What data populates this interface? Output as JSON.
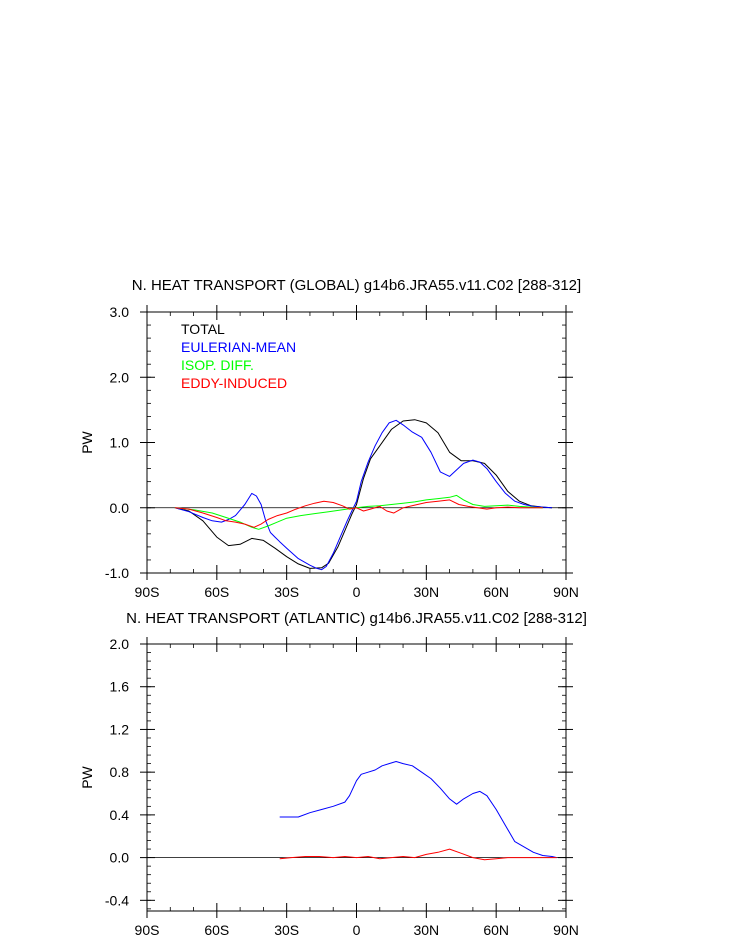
{
  "chart_data": [
    {
      "type": "line",
      "title": "N. HEAT TRANSPORT (GLOBAL) g14b6.JRA55.v11.C02 [288-312]",
      "xlabel": "",
      "ylabel": "PW",
      "xlim": [
        -90,
        90
      ],
      "ylim": [
        -1.0,
        3.0
      ],
      "xticks": [
        -90,
        -60,
        -30,
        0,
        30,
        60,
        90
      ],
      "xtick_labels": [
        "90S",
        "60S",
        "30S",
        "0",
        "30N",
        "60N",
        "90N"
      ],
      "yticks": [
        -1.0,
        0.0,
        1.0,
        2.0,
        3.0
      ],
      "ytick_labels": [
        "-1.0",
        "0.0",
        "1.0",
        "2.0",
        "3.0"
      ],
      "legend_position": "top-left",
      "series": [
        {
          "name": "TOTAL",
          "color": "#000000",
          "x": [
            -78,
            -72,
            -66,
            -60,
            -55,
            -50,
            -45,
            -40,
            -35,
            -30,
            -25,
            -20,
            -15,
            -12,
            -8,
            -5,
            -2,
            0,
            3,
            6,
            10,
            15,
            20,
            25,
            30,
            35,
            40,
            45,
            50,
            55,
            60,
            65,
            70,
            75,
            80,
            84
          ],
          "y": [
            0,
            -0.05,
            -0.2,
            -0.45,
            -0.58,
            -0.56,
            -0.47,
            -0.5,
            -0.62,
            -0.75,
            -0.86,
            -0.93,
            -0.92,
            -0.85,
            -0.6,
            -0.35,
            -0.1,
            0.05,
            0.45,
            0.75,
            0.95,
            1.2,
            1.33,
            1.35,
            1.3,
            1.15,
            0.85,
            0.72,
            0.72,
            0.68,
            0.5,
            0.25,
            0.1,
            0.03,
            0.01,
            0
          ]
        },
        {
          "name": "EULERIAN-MEAN",
          "color": "#0000ff",
          "x": [
            -78,
            -72,
            -66,
            -62,
            -58,
            -55,
            -52,
            -48,
            -45,
            -43,
            -41,
            -39,
            -37,
            -35,
            -33,
            -30,
            -25,
            -20,
            -17,
            -15,
            -13,
            -10,
            -7,
            -4,
            -2,
            0,
            2,
            5,
            8,
            11,
            14,
            17,
            20,
            24,
            28,
            32,
            36,
            40,
            43,
            46,
            50,
            53,
            56,
            60,
            64,
            68,
            72,
            76,
            80,
            84
          ],
          "y": [
            0,
            -0.06,
            -0.15,
            -0.2,
            -0.22,
            -0.18,
            -0.12,
            0.05,
            0.22,
            0.18,
            0.05,
            -0.2,
            -0.38,
            -0.45,
            -0.52,
            -0.62,
            -0.78,
            -0.88,
            -0.93,
            -0.95,
            -0.9,
            -0.7,
            -0.45,
            -0.2,
            -0.05,
            0.1,
            0.4,
            0.7,
            0.95,
            1.15,
            1.3,
            1.34,
            1.27,
            1.16,
            1.08,
            0.85,
            0.55,
            0.48,
            0.58,
            0.68,
            0.73,
            0.7,
            0.6,
            0.4,
            0.22,
            0.1,
            0.05,
            0.02,
            0.01,
            0
          ]
        },
        {
          "name": "ISOP. DIFF.",
          "color": "#00ff00",
          "x": [
            -78,
            -70,
            -62,
            -56,
            -50,
            -45,
            -42,
            -38,
            -34,
            -30,
            -24,
            -18,
            -12,
            -6,
            0,
            5,
            10,
            15,
            20,
            25,
            30,
            35,
            40,
            43,
            46,
            50,
            55,
            60,
            65,
            70,
            75,
            80
          ],
          "y": [
            0,
            -0.03,
            -0.08,
            -0.15,
            -0.22,
            -0.3,
            -0.33,
            -0.28,
            -0.22,
            -0.16,
            -0.12,
            -0.09,
            -0.06,
            -0.03,
            0.0,
            0.02,
            0.03,
            0.05,
            0.07,
            0.09,
            0.12,
            0.14,
            0.16,
            0.19,
            0.12,
            0.05,
            0.02,
            0.03,
            0.04,
            0.02,
            0.01,
            0
          ]
        },
        {
          "name": "EDDY-INDUCED",
          "color": "#ff0000",
          "x": [
            -78,
            -72,
            -66,
            -60,
            -56,
            -52,
            -48,
            -44,
            -41,
            -38,
            -34,
            -30,
            -26,
            -22,
            -18,
            -14,
            -10,
            -6,
            -3,
            0,
            3,
            6,
            10,
            13,
            16,
            20,
            25,
            30,
            35,
            40,
            44,
            48,
            52,
            56,
            60,
            65,
            70,
            75,
            80
          ],
          "y": [
            0,
            -0.02,
            -0.08,
            -0.15,
            -0.2,
            -0.22,
            -0.25,
            -0.3,
            -0.25,
            -0.18,
            -0.12,
            -0.08,
            -0.02,
            0.03,
            0.07,
            0.1,
            0.08,
            0.03,
            -0.02,
            0.0,
            -0.05,
            -0.02,
            0.02,
            -0.05,
            -0.08,
            0.0,
            0.04,
            0.08,
            0.1,
            0.12,
            0.05,
            0.02,
            0.0,
            -0.02,
            0.0,
            0.01,
            0.0,
            0.0,
            0
          ]
        }
      ]
    },
    {
      "type": "line",
      "title": "N. HEAT TRANSPORT (ATLANTIC) g14b6.JRA55.v11.C02 [288-312]",
      "xlabel": "",
      "ylabel": "PW",
      "xlim": [
        -90,
        90
      ],
      "ylim": [
        -0.5,
        2.0
      ],
      "xticks": [
        -90,
        -60,
        -30,
        0,
        30,
        60,
        90
      ],
      "xtick_labels": [
        "90S",
        "60S",
        "30S",
        "0",
        "30N",
        "60N",
        "90N"
      ],
      "yticks": [
        -0.4,
        0.0,
        0.4,
        0.8,
        1.2,
        1.6,
        2.0
      ],
      "ytick_labels": [
        "-0.4",
        "0.0",
        "0.4",
        "0.8",
        "1.2",
        "1.6",
        "2.0"
      ],
      "series": [
        {
          "name": "EULERIAN-MEAN",
          "color": "#0000ff",
          "x": [
            -33,
            -30,
            -25,
            -20,
            -15,
            -10,
            -5,
            -3,
            0,
            2,
            5,
            8,
            11,
            14,
            17,
            20,
            24,
            28,
            32,
            36,
            40,
            43,
            46,
            50,
            53,
            56,
            60,
            64,
            68,
            72,
            76,
            80,
            84,
            86
          ],
          "y": [
            0.38,
            0.38,
            0.38,
            0.42,
            0.45,
            0.48,
            0.52,
            0.58,
            0.72,
            0.78,
            0.8,
            0.82,
            0.86,
            0.88,
            0.9,
            0.88,
            0.86,
            0.8,
            0.74,
            0.65,
            0.55,
            0.5,
            0.55,
            0.6,
            0.62,
            0.58,
            0.45,
            0.3,
            0.15,
            0.1,
            0.05,
            0.02,
            0.01,
            0.0
          ]
        },
        {
          "name": "EDDY-INDUCED",
          "color": "#ff0000",
          "x": [
            -33,
            -28,
            -22,
            -16,
            -10,
            -5,
            0,
            5,
            10,
            15,
            20,
            25,
            30,
            35,
            40,
            45,
            50,
            55,
            60,
            65,
            70,
            75,
            80,
            86
          ],
          "y": [
            -0.01,
            0.0,
            0.01,
            0.01,
            0.0,
            0.01,
            0.0,
            0.01,
            -0.01,
            0.0,
            0.01,
            0.0,
            0.03,
            0.05,
            0.08,
            0.04,
            0.0,
            -0.02,
            -0.01,
            0.0,
            0.0,
            0.0,
            0.0,
            0.0
          ]
        }
      ]
    }
  ]
}
